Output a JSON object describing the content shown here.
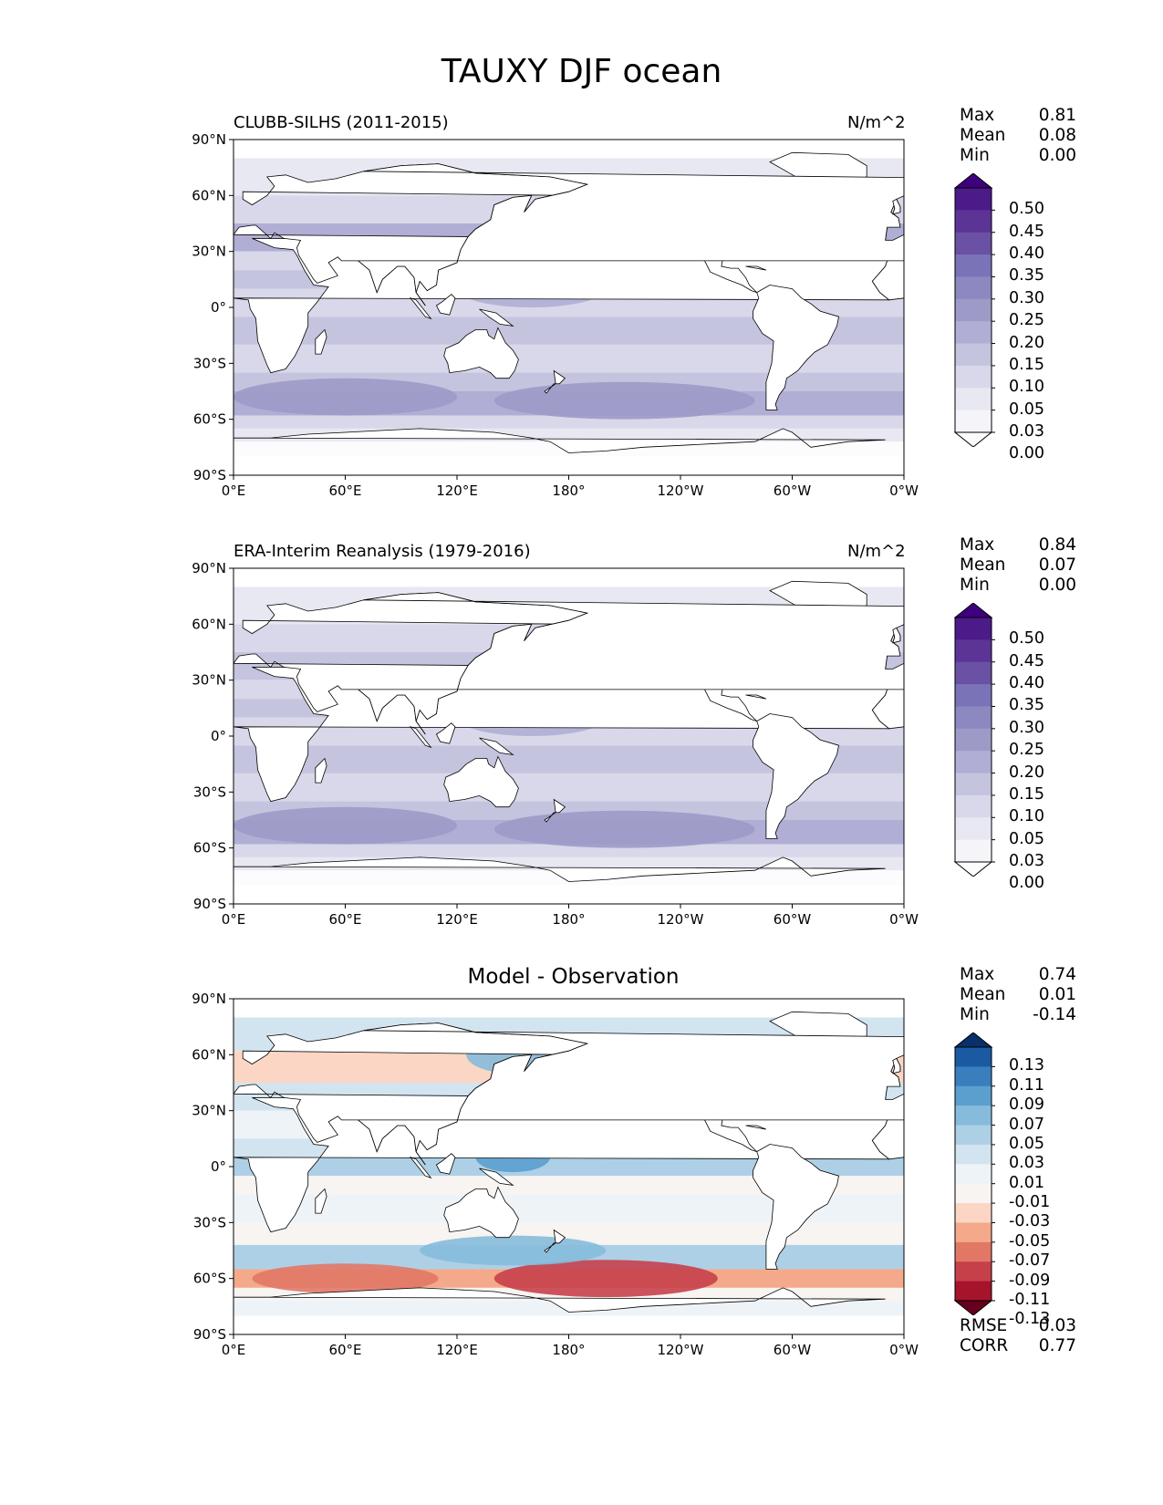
{
  "title": "TAUXY DJF ocean",
  "axes": {
    "lat_ticks": [
      "90°N",
      "60°N",
      "30°N",
      "0°",
      "30°S",
      "60°S",
      "90°S"
    ],
    "lon_ticks": [
      "0°E",
      "60°E",
      "120°E",
      "180°",
      "120°W",
      "60°W",
      "0°W"
    ]
  },
  "panels": [
    {
      "name": "model",
      "title_left": "CLUBB-SILHS (2011-2015)",
      "title_right": "N/m^2",
      "title_center": "",
      "stats": {
        "max_label": "Max",
        "max": "0.81",
        "mean_label": "Mean",
        "mean": "0.08",
        "min_label": "Min",
        "min": "0.00"
      },
      "colorbar": {
        "levels": [
          "0.50",
          "0.45",
          "0.40",
          "0.35",
          "0.30",
          "0.25",
          "0.20",
          "0.15",
          "0.10",
          "0.05",
          "0.03",
          "0.00"
        ],
        "colors": [
          "#3f007d",
          "#4d1a89",
          "#5b3496",
          "#6a51a3",
          "#7b73b7",
          "#8c89c0",
          "#9e9ac8",
          "#b0aed4",
          "#c4c4df",
          "#d8d8ea",
          "#e8e8f3",
          "#f4f4f9",
          "#fcfbfd"
        ]
      }
    },
    {
      "name": "observation",
      "title_left": "ERA-Interim Reanalysis (1979-2016)",
      "title_right": "N/m^2",
      "title_center": "",
      "stats": {
        "max_label": "Max",
        "max": "0.84",
        "mean_label": "Mean",
        "mean": "0.07",
        "min_label": "Min",
        "min": "0.00"
      },
      "colorbar": {
        "levels": [
          "0.50",
          "0.45",
          "0.40",
          "0.35",
          "0.30",
          "0.25",
          "0.20",
          "0.15",
          "0.10",
          "0.05",
          "0.03",
          "0.00"
        ],
        "colors": [
          "#3f007d",
          "#4d1a89",
          "#5b3496",
          "#6a51a3",
          "#7b73b7",
          "#8c89c0",
          "#9e9ac8",
          "#b0aed4",
          "#c4c4df",
          "#d8d8ea",
          "#e8e8f3",
          "#f4f4f9",
          "#fcfbfd"
        ]
      }
    },
    {
      "name": "difference",
      "title_left": "",
      "title_right": "",
      "title_center": "Model - Observation",
      "stats": {
        "max_label": "Max",
        "max": "0.74",
        "mean_label": "Mean",
        "mean": "0.01",
        "min_label": "Min",
        "min": "-0.14"
      },
      "colorbar": {
        "levels": [
          "0.13",
          "0.11",
          "0.09",
          "0.07",
          "0.05",
          "0.03",
          "0.01",
          "-0.01",
          "-0.03",
          "-0.05",
          "-0.07",
          "-0.09",
          "-0.11",
          "-0.13"
        ],
        "colors": [
          "#08306b",
          "#1a5aa3",
          "#3a7fbd",
          "#5b9fcf",
          "#86bbdc",
          "#aed0e6",
          "#d2e4f0",
          "#eef3f7",
          "#f7f4f2",
          "#fbd6c4",
          "#f4a98a",
          "#e17866",
          "#c6404a",
          "#a5142b",
          "#67001f"
        ]
      },
      "metrics": {
        "rmse_label": "RMSE",
        "rmse": "0.03",
        "corr_label": "CORR",
        "corr": "0.77"
      }
    }
  ]
}
